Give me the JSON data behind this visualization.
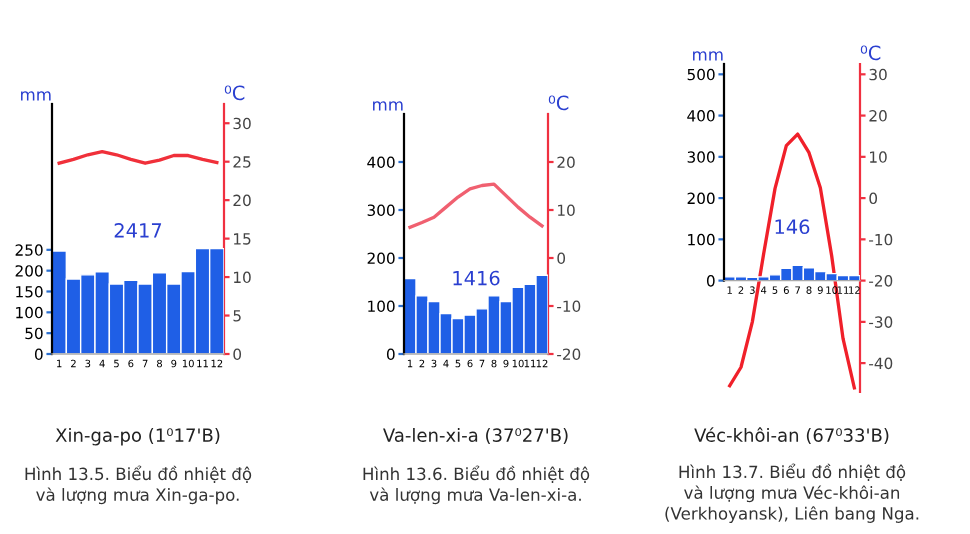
{
  "chart_data": [
    {
      "type": "bar",
      "title": "Xin-ga-po (1⁰17'B)",
      "ylabel": "mm",
      "y2label": "⁰C",
      "categories": [
        "1",
        "2",
        "3",
        "4",
        "5",
        "6",
        "7",
        "8",
        "9",
        "10",
        "11",
        "12"
      ],
      "series": [
        {
          "color": "#1f5fe6",
          "values": [
            247,
            180,
            190,
            197,
            168,
            177,
            168,
            195,
            168,
            198,
            253,
            253
          ]
        },
        {
          "type": "line",
          "axis": "y2",
          "color": "#f0303a",
          "values": [
            24.8,
            25.3,
            25.9,
            26.3,
            25.9,
            25.3,
            24.8,
            25.2,
            25.8,
            25.8,
            25.3,
            24.9
          ]
        }
      ],
      "ylim": [
        0,
        600
      ],
      "yticks": [
        0,
        50,
        100,
        150,
        200,
        250
      ],
      "y2lim": [
        0,
        32.5
      ],
      "y2ticks": [
        0,
        5,
        10,
        15,
        20,
        25,
        30
      ],
      "annotations": [
        "2417",
        "Hình 13.5. Biểu đồ nhiệt độ\nvà lượng mưa Xin-ga-po."
      ]
    },
    {
      "type": "bar",
      "title": "Va-len-xi-a (37⁰27'B)",
      "ylabel": "mm",
      "y2label": "⁰C",
      "categories": [
        "1",
        "2",
        "3",
        "4",
        "5",
        "6",
        "7",
        "8",
        "9",
        "10",
        "11",
        "12"
      ],
      "series": [
        {
          "color": "#1f5fe6",
          "values": [
            157,
            121,
            109,
            84,
            74,
            81,
            94,
            121,
            109,
            139,
            145,
            164
          ]
        },
        {
          "type": "line",
          "axis": "y2",
          "color": "#f06070",
          "values": [
            6.4,
            7.4,
            8.5,
            10.6,
            12.7,
            14.4,
            15.1,
            15.4,
            13,
            10.6,
            8.5,
            6.7
          ]
        }
      ],
      "ylim": [
        0,
        500
      ],
      "yticks": [
        0,
        100,
        200,
        300,
        400
      ],
      "y2lim": [
        -20,
        30
      ],
      "y2ticks": [
        -20,
        -10,
        0,
        10,
        20
      ],
      "annotations": [
        "1416",
        "Hình 13.6. Biểu đồ nhiệt độ\nvà lượng mưa Va-len-xi-a."
      ]
    },
    {
      "type": "bar",
      "title": "Véc-khôi-an (67⁰33'B)",
      "ylabel": "mm",
      "y2label": "⁰C",
      "categories": [
        "1",
        "2",
        "3",
        "4",
        "5",
        "6",
        "7",
        "8",
        "9",
        "10",
        "11",
        "12"
      ],
      "series": [
        {
          "color": "#1f5fe6",
          "values": [
            9,
            9,
            8,
            9,
            14,
            30,
            37,
            31,
            22,
            17,
            12,
            12
          ]
        },
        {
          "type": "line",
          "axis": "y2",
          "color": "#f0202a",
          "values": [
            -45.5,
            -41,
            -30,
            -13.5,
            2.3,
            12.7,
            15.5,
            11,
            2.5,
            -14,
            -34,
            -46
          ]
        }
      ],
      "ylim": [
        -270,
        525
      ],
      "yticks": [
        0,
        100,
        200,
        300,
        400,
        500
      ],
      "y2lim": [
        -47,
        32.5
      ],
      "y2ticks": [
        -40,
        -30,
        -20,
        -10,
        0,
        10,
        20,
        30
      ],
      "annotations": [
        "146",
        "Hình 13.7. Biểu đồ nhiệt độ\nvà lượng mưa Véc-khôi-an\n(Verkhoyansk), Liên bang Nga."
      ]
    }
  ]
}
